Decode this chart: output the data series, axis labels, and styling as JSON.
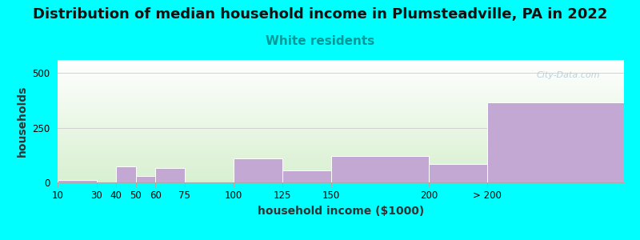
{
  "title": "Distribution of median household income in Plumsteadville, PA in 2022",
  "subtitle": "White residents",
  "xlabel": "household income ($1000)",
  "ylabel": "households",
  "background_color": "#00FFFF",
  "plot_bg_colors": [
    "#ffffff",
    "#d8f0d0"
  ],
  "bar_color": "#c4a8d4",
  "categories": [
    "10",
    "30",
    "40",
    "50",
    "60",
    "75",
    "100",
    "125",
    "150",
    "200",
    "> 200"
  ],
  "bar_lefts": [
    10,
    30,
    40,
    50,
    60,
    75,
    100,
    125,
    150,
    200,
    230
  ],
  "bar_widths": [
    20,
    10,
    10,
    10,
    15,
    25,
    25,
    25,
    50,
    30,
    70
  ],
  "values": [
    10,
    0,
    75,
    30,
    65,
    0,
    110,
    55,
    120,
    85,
    365
  ],
  "xlim": [
    10,
    300
  ],
  "xtick_positions": [
    10,
    30,
    40,
    50,
    60,
    75,
    100,
    125,
    150,
    200,
    230
  ],
  "xtick_labels": [
    "10",
    "30",
    "40",
    "50",
    "60",
    "75",
    "100",
    "125",
    "150",
    "200",
    "> 200"
  ],
  "ylim": [
    0,
    560
  ],
  "yticks": [
    0,
    250,
    500
  ],
  "title_fontsize": 13,
  "subtitle_fontsize": 11,
  "axis_label_fontsize": 10,
  "tick_fontsize": 8.5,
  "watermark": "City-Data.com"
}
